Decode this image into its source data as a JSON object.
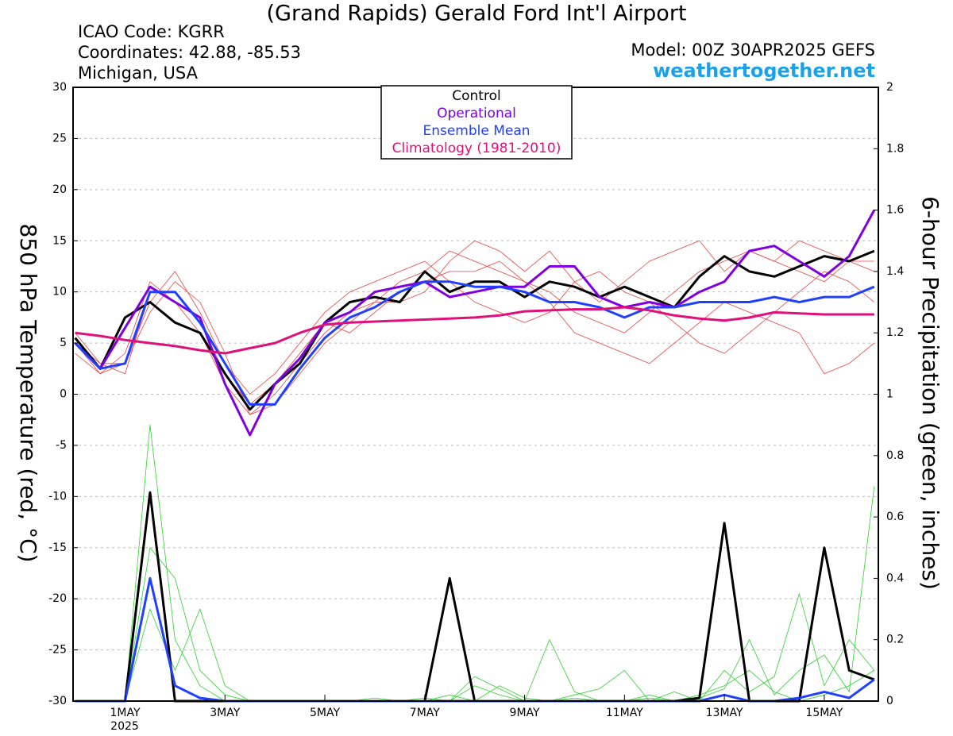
{
  "chart_data": {
    "type": "line",
    "title": "(Grand Rapids) Gerald Ford Int'l Airport",
    "info_lines": [
      "ICAO Code: KGRR",
      "Coordinates: 42.88, -85.53",
      "Michigan, USA"
    ],
    "model": "Model: 00Z 30APR2025 GEFS",
    "source": "weathertogether.net",
    "y_label": "850 hPa Temperature (red, °C)",
    "y2_label": "6-hour Precipitation (green, inches)",
    "x_sublabel": "2025",
    "x": [
      0,
      12,
      24,
      36,
      48,
      60,
      72,
      84,
      96,
      108,
      120,
      132,
      144,
      156,
      168,
      180,
      192,
      204,
      216,
      228,
      240,
      252,
      264,
      276,
      288,
      300,
      312,
      324,
      336,
      348,
      360,
      372,
      384
    ],
    "xlim": [
      -1,
      386
    ],
    "xticks": [
      {
        "value": 24,
        "label": "1MAY"
      },
      {
        "value": 72,
        "label": "3MAY"
      },
      {
        "value": 120,
        "label": "5MAY"
      },
      {
        "value": 168,
        "label": "7MAY"
      },
      {
        "value": 216,
        "label": "9MAY"
      },
      {
        "value": 264,
        "label": "11MAY"
      },
      {
        "value": 312,
        "label": "13MAY"
      },
      {
        "value": 360,
        "label": "15MAY"
      }
    ],
    "ylim": [
      -30,
      30
    ],
    "yticks": [
      -30,
      -25,
      -20,
      -15,
      -10,
      -5,
      0,
      5,
      10,
      15,
      20,
      25,
      30
    ],
    "y2lim": [
      0,
      2
    ],
    "y2ticks": [
      0,
      0.2,
      0.4,
      0.6,
      0.8,
      1,
      1.2,
      1.4,
      1.6,
      1.8,
      2
    ],
    "grid": true,
    "legend": "top",
    "series": [
      {
        "color": "#f04040",
        "values": [
          5,
          2,
          4,
          11,
          9,
          6,
          1,
          -2,
          0,
          3,
          6,
          8,
          9,
          11,
          12,
          14,
          13,
          12,
          11,
          10,
          8,
          7,
          6,
          8,
          10,
          12,
          13,
          14,
          13,
          12,
          11,
          13,
          12
        ]
      },
      {
        "color": "#f04040",
        "values": [
          4,
          2,
          3,
          9,
          12,
          8,
          3,
          0,
          2,
          5,
          8,
          10,
          11,
          12,
          13,
          11,
          9,
          8,
          7,
          8,
          11,
          12,
          10,
          9,
          7,
          5,
          4,
          6,
          8,
          10,
          12,
          11,
          9
        ]
      },
      {
        "color": "#f04040",
        "values": [
          5,
          3,
          2,
          10,
          10,
          7,
          2,
          -1,
          1,
          4,
          7,
          6,
          8,
          10,
          11,
          12,
          12,
          13,
          11,
          9,
          6,
          5,
          4,
          3,
          5,
          7,
          9,
          8,
          7,
          6,
          2,
          3,
          5
        ]
      },
      {
        "color": "#f04040",
        "values": [
          6,
          3,
          3,
          8,
          11,
          9,
          4,
          -2,
          -1,
          2,
          5,
          7,
          9,
          9,
          10,
          13,
          15,
          14,
          12,
          14,
          11,
          9,
          11,
          13,
          14,
          15,
          12,
          14,
          13,
          15,
          14,
          13,
          13
        ]
      },
      {
        "color": "#30d030",
        "axis": "y2",
        "values": [
          0,
          0,
          0,
          0.9,
          0.2,
          0.05,
          0,
          0,
          0,
          0,
          0,
          0,
          0,
          0,
          0,
          0,
          0.05,
          0.02,
          0,
          0.2,
          0.03,
          0,
          0,
          0.01,
          0,
          0.02,
          0.05,
          0.1,
          0.03,
          0,
          0.02,
          0.05,
          0.1
        ]
      },
      {
        "color": "#30d030",
        "axis": "y2",
        "values": [
          0,
          0,
          0,
          0.5,
          0.4,
          0.1,
          0.02,
          0,
          0,
          0,
          0,
          0,
          0.01,
          0,
          0,
          0.02,
          0,
          0.05,
          0.01,
          0,
          0.02,
          0.04,
          0.1,
          0,
          0.03,
          0,
          0.1,
          0.03,
          0.08,
          0.35,
          0.05,
          0.2,
          0.1
        ]
      },
      {
        "color": "#30d030",
        "axis": "y2",
        "values": [
          0,
          0,
          0,
          0.3,
          0.1,
          0.3,
          0.05,
          0,
          0,
          0,
          0,
          0,
          0,
          0,
          0.01,
          0,
          0.08,
          0.04,
          0,
          0,
          0.01,
          0,
          0,
          0.02,
          0,
          0.01,
          0.04,
          0.2,
          0.02,
          0.1,
          0.15,
          0.03,
          0.7
        ]
      },
      {
        "name": "Control",
        "color": "#000000",
        "values": [
          5.5,
          2.5,
          7.5,
          9,
          7,
          6,
          2,
          -1.5,
          1,
          3,
          7,
          9,
          9.5,
          9,
          12,
          10,
          11,
          11,
          9.5,
          11,
          10.5,
          9.5,
          10.5,
          9.5,
          8.5,
          11.5,
          13.5,
          12,
          11.5,
          12.5,
          13.5,
          13,
          14
        ]
      },
      {
        "name": "Operational",
        "color": "#8000e0",
        "values": [
          5,
          2.5,
          6.5,
          10.5,
          9,
          7.5,
          1,
          -4,
          1,
          3.5,
          7,
          8,
          10,
          10.5,
          11,
          9.5,
          10,
          10.5,
          10.5,
          12.5,
          12.5,
          9.5,
          8.5,
          9,
          8.5,
          10,
          11,
          14,
          14.5,
          13,
          11.5,
          13.5,
          18
        ]
      },
      {
        "name": "Ensemble Mean",
        "color": "#2040ff",
        "values": [
          5,
          2.5,
          3,
          10,
          10,
          7,
          3,
          -1,
          -1,
          2.5,
          5.5,
          7.5,
          8.5,
          10,
          11,
          11,
          10.5,
          10.5,
          10,
          9,
          9,
          8.5,
          7.5,
          8.5,
          8.5,
          9,
          9,
          9,
          9.5,
          9,
          9.5,
          9.5,
          10.5
        ]
      },
      {
        "name": "Climatology (1981-2010)",
        "color": "#e0107a",
        "values": [
          6,
          5.7,
          5.3,
          5,
          4.7,
          4.3,
          4,
          4.5,
          5,
          6,
          6.8,
          7,
          7.1,
          7.2,
          7.3,
          7.4,
          7.5,
          7.7,
          8.1,
          8.2,
          8.3,
          8.3,
          8.5,
          8.2,
          7.7,
          7.4,
          7.2,
          7.5,
          8,
          7.9,
          7.8,
          7.8,
          7.8
        ]
      },
      {
        "color": "#000000",
        "axis": "y2",
        "values": [
          0,
          0,
          0,
          0.68,
          0,
          0,
          0,
          0,
          0,
          0,
          0,
          0,
          0,
          0,
          0,
          0.4,
          0,
          0,
          0,
          0,
          0,
          0,
          0,
          0,
          0,
          0.01,
          0.58,
          0,
          0,
          0,
          0.5,
          0.1,
          0.07
        ]
      },
      {
        "color": "#2040ff",
        "axis": "y2",
        "values": [
          0,
          0,
          0,
          0.4,
          0.05,
          0.01,
          0,
          0,
          0,
          0,
          0,
          0,
          0,
          0,
          0,
          0,
          0,
          0,
          0,
          0,
          0,
          0,
          0,
          0,
          0,
          0,
          0.02,
          0,
          0,
          0.01,
          0.03,
          0.01,
          0.07
        ]
      }
    ]
  }
}
